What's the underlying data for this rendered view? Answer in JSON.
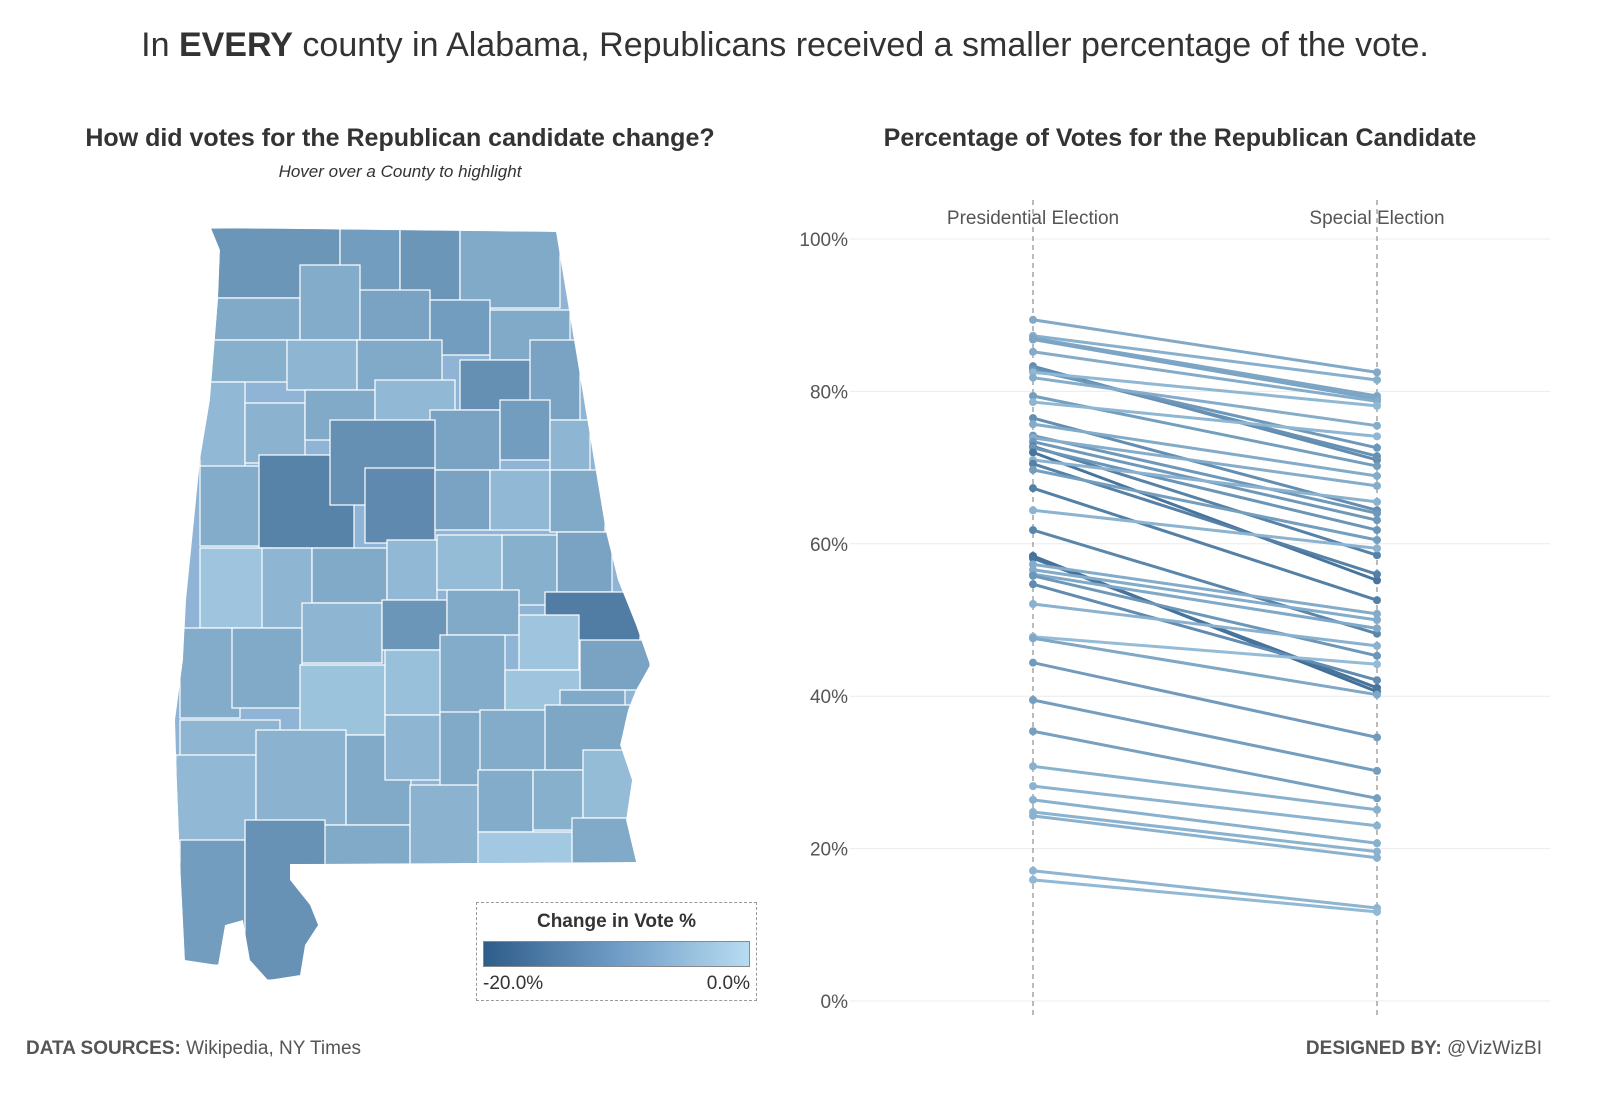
{
  "headline": {
    "pre": "In ",
    "bold": "EVERY",
    "post": " county in Alabama, Republicans received a smaller percentage of the vote."
  },
  "map": {
    "title": "How did votes for the Republican candidate change?",
    "subtitle": "Hover over a County to highlight",
    "legend": {
      "title": "Change in Vote %",
      "min_label": "-20.0%",
      "max_label": "0.0%",
      "color_min": "#2f5d8a",
      "color_max": "#b7dcf1"
    }
  },
  "chart_data": {
    "type": "line",
    "title": "Percentage of Votes for the Republican Candidate",
    "categories": [
      "Presidential Election",
      "Special Election"
    ],
    "ylim": [
      0,
      100
    ],
    "yticks": [
      "0%",
      "20%",
      "40%",
      "60%",
      "80%",
      "100%"
    ],
    "grid": true,
    "series_values": [
      [
        89.4,
        82.5
      ],
      [
        87.3,
        81.5
      ],
      [
        87.0,
        79.4
      ],
      [
        86.8,
        79.0
      ],
      [
        85.2,
        78.7
      ],
      [
        83.3,
        71.0
      ],
      [
        83.0,
        71.5
      ],
      [
        82.8,
        72.6
      ],
      [
        82.5,
        78.1
      ],
      [
        81.8,
        75.5
      ],
      [
        79.4,
        70.2
      ],
      [
        78.6,
        74.1
      ],
      [
        76.5,
        64.4
      ],
      [
        75.7,
        68.9
      ],
      [
        74.2,
        64.0
      ],
      [
        73.9,
        67.6
      ],
      [
        73.4,
        63.1
      ],
      [
        72.8,
        58.5
      ],
      [
        72.6,
        61.8
      ],
      [
        72.0,
        55.2
      ],
      [
        71.0,
        65.5
      ],
      [
        70.5,
        56.0
      ],
      [
        69.7,
        60.5
      ],
      [
        67.3,
        52.6
      ],
      [
        64.4,
        59.4
      ],
      [
        61.8,
        48.2
      ],
      [
        58.4,
        40.6
      ],
      [
        58.1,
        41.1
      ],
      [
        57.3,
        50.8
      ],
      [
        56.6,
        50.0
      ],
      [
        56.0,
        48.9
      ],
      [
        55.8,
        45.3
      ],
      [
        54.7,
        42.1
      ],
      [
        52.1,
        46.6
      ],
      [
        47.8,
        44.2
      ],
      [
        47.6,
        40.2
      ],
      [
        44.4,
        34.6
      ],
      [
        39.5,
        30.2
      ],
      [
        35.4,
        26.6
      ],
      [
        30.8,
        25.1
      ],
      [
        28.2,
        23.0
      ],
      [
        26.4,
        20.7
      ],
      [
        24.8,
        19.6
      ],
      [
        24.3,
        18.8
      ],
      [
        17.1,
        12.2
      ],
      [
        15.9,
        11.7
      ]
    ]
  },
  "footer": {
    "sources_label": "DATA SOURCES:",
    "sources": " Wikipedia, NY Times",
    "designed_label": "DESIGNED BY:",
    "designed": " @VizWizBI"
  }
}
